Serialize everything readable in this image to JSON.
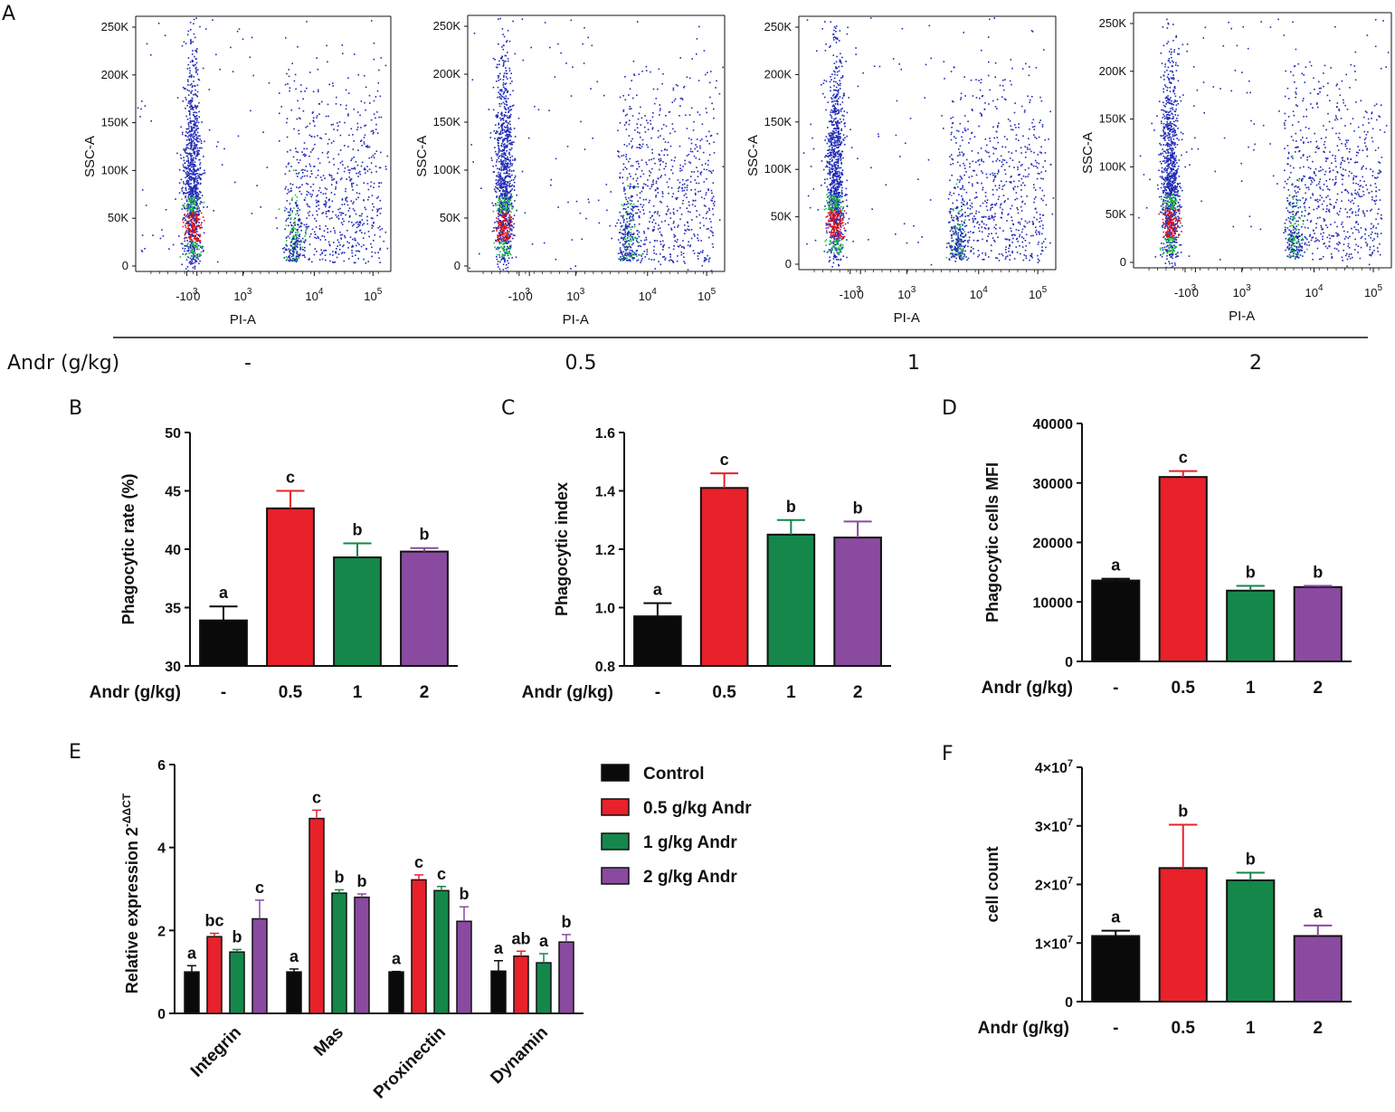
{
  "colors": {
    "control": "#0a0a0a",
    "g05": "#e8212a",
    "g1": "#15874a",
    "g2": "#8a4aa0",
    "scatter_low": "#1f2ab5",
    "scatter_mid": "#18c23a",
    "scatter_high": "#e81010"
  },
  "panel_a": {
    "letter": "A",
    "row_label": "Andr (g/kg)",
    "dose_labels": [
      "-",
      "0.5",
      "1",
      "2"
    ],
    "y_axis_title": "SSC-A",
    "x_axis_title": "PI-A",
    "y_ticks": [
      "0",
      "50K",
      "100K",
      "150K",
      "200K",
      "250K"
    ],
    "x_tick_bases": [
      "-10",
      "0",
      "10",
      "10",
      "10"
    ],
    "x_tick_exps": [
      "3",
      "",
      "3",
      "4",
      "5"
    ]
  },
  "chart_data": [
    {
      "panel": "B",
      "type": "bar",
      "ylabel": "Phagocytic rate (%)",
      "xlabel": "Andr (g/kg)",
      "categories": [
        "-",
        "0.5",
        "1",
        "2"
      ],
      "values": [
        33.9,
        43.5,
        39.3,
        39.8
      ],
      "errors": [
        1.2,
        1.5,
        1.2,
        0.3
      ],
      "significance": [
        "a",
        "c",
        "b",
        "b"
      ],
      "ylim": [
        30,
        50
      ],
      "yticks": [
        "30",
        "35",
        "40",
        "45",
        "50"
      ]
    },
    {
      "panel": "C",
      "type": "bar",
      "ylabel": "Phagocytic index",
      "xlabel": "Andr (g/kg)",
      "categories": [
        "-",
        "0.5",
        "1",
        "2"
      ],
      "values": [
        0.97,
        1.41,
        1.25,
        1.24
      ],
      "errors": [
        0.045,
        0.05,
        0.05,
        0.055
      ],
      "significance": [
        "a",
        "c",
        "b",
        "b"
      ],
      "ylim": [
        0.8,
        1.6
      ],
      "yticks": [
        "0.8",
        "1.0",
        "1.2",
        "1.4",
        "1.6"
      ]
    },
    {
      "panel": "D",
      "type": "bar",
      "ylabel": "Phagocytic cells MFI",
      "xlabel": "Andr (g/kg)",
      "categories": [
        "-",
        "0.5",
        "1",
        "2"
      ],
      "values": [
        13600,
        31000,
        11900,
        12500
      ],
      "errors": [
        300,
        1000,
        800,
        200
      ],
      "significance": [
        "a",
        "c",
        "b",
        "b"
      ],
      "ylim": [
        0,
        40000
      ],
      "yticks": [
        "0",
        "10000",
        "20000",
        "30000",
        "40000"
      ]
    },
    {
      "panel": "E",
      "type": "bar",
      "ylabel_base": "Relative expression 2",
      "ylabel_sup": "-ΔΔCT",
      "categories": [
        "Integrin",
        "Mas",
        "Proxinectin",
        "Dynamin"
      ],
      "series": [
        {
          "name": "Control",
          "values": [
            1.0,
            1.0,
            1.0,
            1.02
          ],
          "errors": [
            0.15,
            0.07,
            0.01,
            0.25
          ],
          "significance": [
            "a",
            "a",
            "a",
            "a"
          ]
        },
        {
          "name": "0.5 g/kg Andr",
          "values": [
            1.85,
            4.7,
            3.22,
            1.38
          ],
          "errors": [
            0.08,
            0.2,
            0.12,
            0.12
          ],
          "significance": [
            "bc",
            "c",
            "c",
            "ab"
          ]
        },
        {
          "name": "1 g/kg Andr",
          "values": [
            1.48,
            2.9,
            2.96,
            1.22
          ],
          "errors": [
            0.06,
            0.08,
            0.1,
            0.22
          ],
          "significance": [
            "b",
            "b",
            "c",
            "a"
          ]
        },
        {
          "name": "2 g/kg Andr",
          "values": [
            2.28,
            2.8,
            2.22,
            1.72
          ],
          "errors": [
            0.45,
            0.08,
            0.35,
            0.18
          ],
          "significance": [
            "c",
            "b",
            "b",
            "b"
          ]
        }
      ],
      "ylim": [
        0,
        6
      ],
      "yticks": [
        "0",
        "2",
        "4",
        "6"
      ]
    },
    {
      "panel": "F",
      "type": "bar",
      "ylabel": "cell count",
      "xlabel": "Andr (g/kg)",
      "categories": [
        "-",
        "0.5",
        "1",
        "2"
      ],
      "values": [
        11200000,
        22800000,
        20700000,
        11200000
      ],
      "errors": [
        900000,
        7400000,
        1300000,
        1800000
      ],
      "significance": [
        "a",
        "b",
        "b",
        "a"
      ],
      "ylim": [
        0,
        40000000
      ],
      "yticks": [
        "0",
        "1×10",
        "2×10",
        "3×10",
        "4×10"
      ],
      "ytick_exp": "7"
    }
  ]
}
